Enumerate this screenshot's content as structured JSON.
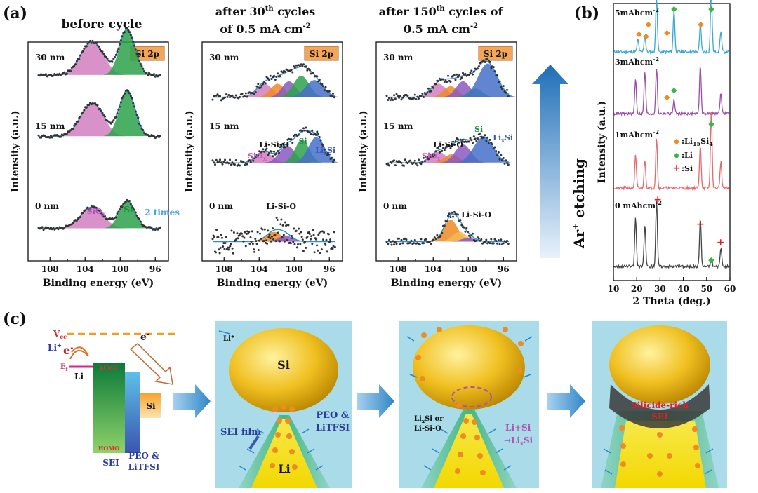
{
  "panel_labels": {
    "a": "(a)",
    "b": "(b)",
    "c": "(c)"
  },
  "xps": {
    "axis_x_label": "Binding energy (eV)",
    "axis_y_label": "Intensity (a.u.)",
    "ticks": [
      "108",
      "104",
      "100",
      "96"
    ],
    "badge": "Si 2p",
    "panels": [
      {
        "title_line1": "before cycle",
        "title_line2": "",
        "depths": [
          "30 nm",
          "15 nm",
          "0 nm"
        ],
        "annotations": {
          "siox": "SiO",
          "siox_sub": "x",
          "si": "Si",
          "times": "2 times"
        }
      },
      {
        "title_line1_pre": "after 30",
        "title_line1_sup": "th",
        "title_line1_post": " cycles",
        "title_line2_pre": "of 0.5 mA cm",
        "title_line2_sup": "-2",
        "depths": [
          "30 nm",
          "15 nm",
          "0 nm"
        ],
        "annotations": {
          "siox": "SiO",
          "siox_sub": "x",
          "lisio": "Li-Si-O",
          "si": "Si",
          "lixsi": "Li",
          "lixsi_sub": "x",
          "lixsi_end": "Si",
          "lisio0": "Li-Si-O"
        }
      },
      {
        "title_line1_pre": "after 150",
        "title_line1_sup": "th",
        "title_line1_post": " cycles of",
        "title_line2_pre": "0.5 mA cm",
        "title_line2_sup": "-2",
        "depths": [
          "30 nm",
          "15 nm",
          "0 nm"
        ],
        "annotations": {
          "siox": "SiO",
          "siox_sub": "x",
          "lisio": "Li-Si-O",
          "si": "Si",
          "lixsi": "Li",
          "lixsi_sub": "x",
          "lixsi_end": "Si",
          "lisio0": "Li-Si-O"
        }
      }
    ],
    "etching_label_pre": "Ar",
    "etching_label_sup": "+",
    "etching_label_post": " etching"
  },
  "chart_data": {
    "type": "line",
    "title": "",
    "xlabel": "2 Theta (deg.)",
    "ylabel": "Intensity (a.u.)",
    "xlim": [
      10,
      60
    ],
    "x_ticks": [
      "10",
      "20",
      "30",
      "40",
      "50",
      "60"
    ],
    "series": [
      {
        "name": "5mAhcm-2",
        "label_pre": "5mAhcm",
        "label_sup": "-2",
        "color": "#3aa7d9"
      },
      {
        "name": "3mAhcm-2",
        "label_pre": "3mAhcm",
        "label_sup": "-2",
        "color": "#9b4fa8"
      },
      {
        "name": "1mAhcm-2",
        "label_pre": "1mAhcm",
        "label_sup": "-2",
        "color": "#e8686a"
      },
      {
        "name": "0 mAhcm-2",
        "label_pre": "0 mAhcm",
        "label_sup": "-2",
        "color": "#444444"
      }
    ],
    "legend": [
      {
        "marker": "◆",
        "color": "#f08a24",
        "pre": ":Li",
        "sub1": "15",
        "mid": "Si",
        "sub2": "4"
      },
      {
        "marker": "◆",
        "color": "#3cb44b",
        "pre": ":Li",
        "sub1": "",
        "mid": "",
        "sub2": ""
      },
      {
        "marker": "+",
        "color": "#e02020",
        "pre": ":Si",
        "sub1": "",
        "mid": "",
        "sub2": ""
      }
    ]
  },
  "schematic": {
    "vcc": "V",
    "vcc_sub": "cc",
    "li_plus": "Li",
    "li_plus_sup": "+",
    "e_minus": "e",
    "e_minus_sup": "-",
    "ef": "E",
    "ef_sub": "f",
    "lumo": "LUMO",
    "homo": "HOMO",
    "li": "Li",
    "si": "Si",
    "sei": "SEI",
    "peo_line1": "PEO &",
    "peo_line2": "LiTFSI",
    "scene1": {
      "li_plus": "Li",
      "li_plus_sup": "+",
      "si": "Si",
      "li": "Li",
      "sei_film": "SEI film",
      "peo_line1": "PEO &",
      "peo_line2": "LiTFSI"
    },
    "scene2": {
      "lixsi_pre": "Li",
      "lixsi_sub": "x",
      "lixsi_post": "Si or",
      "lisio": "Li-Si-O",
      "react_line1": "Li+Si",
      "react_line2_pre": "→Li",
      "react_line2_sub": "x",
      "react_line2_post": "Si"
    },
    "scene3": {
      "label_line1": "Silicide-rich",
      "label_line2": "SEI"
    }
  }
}
